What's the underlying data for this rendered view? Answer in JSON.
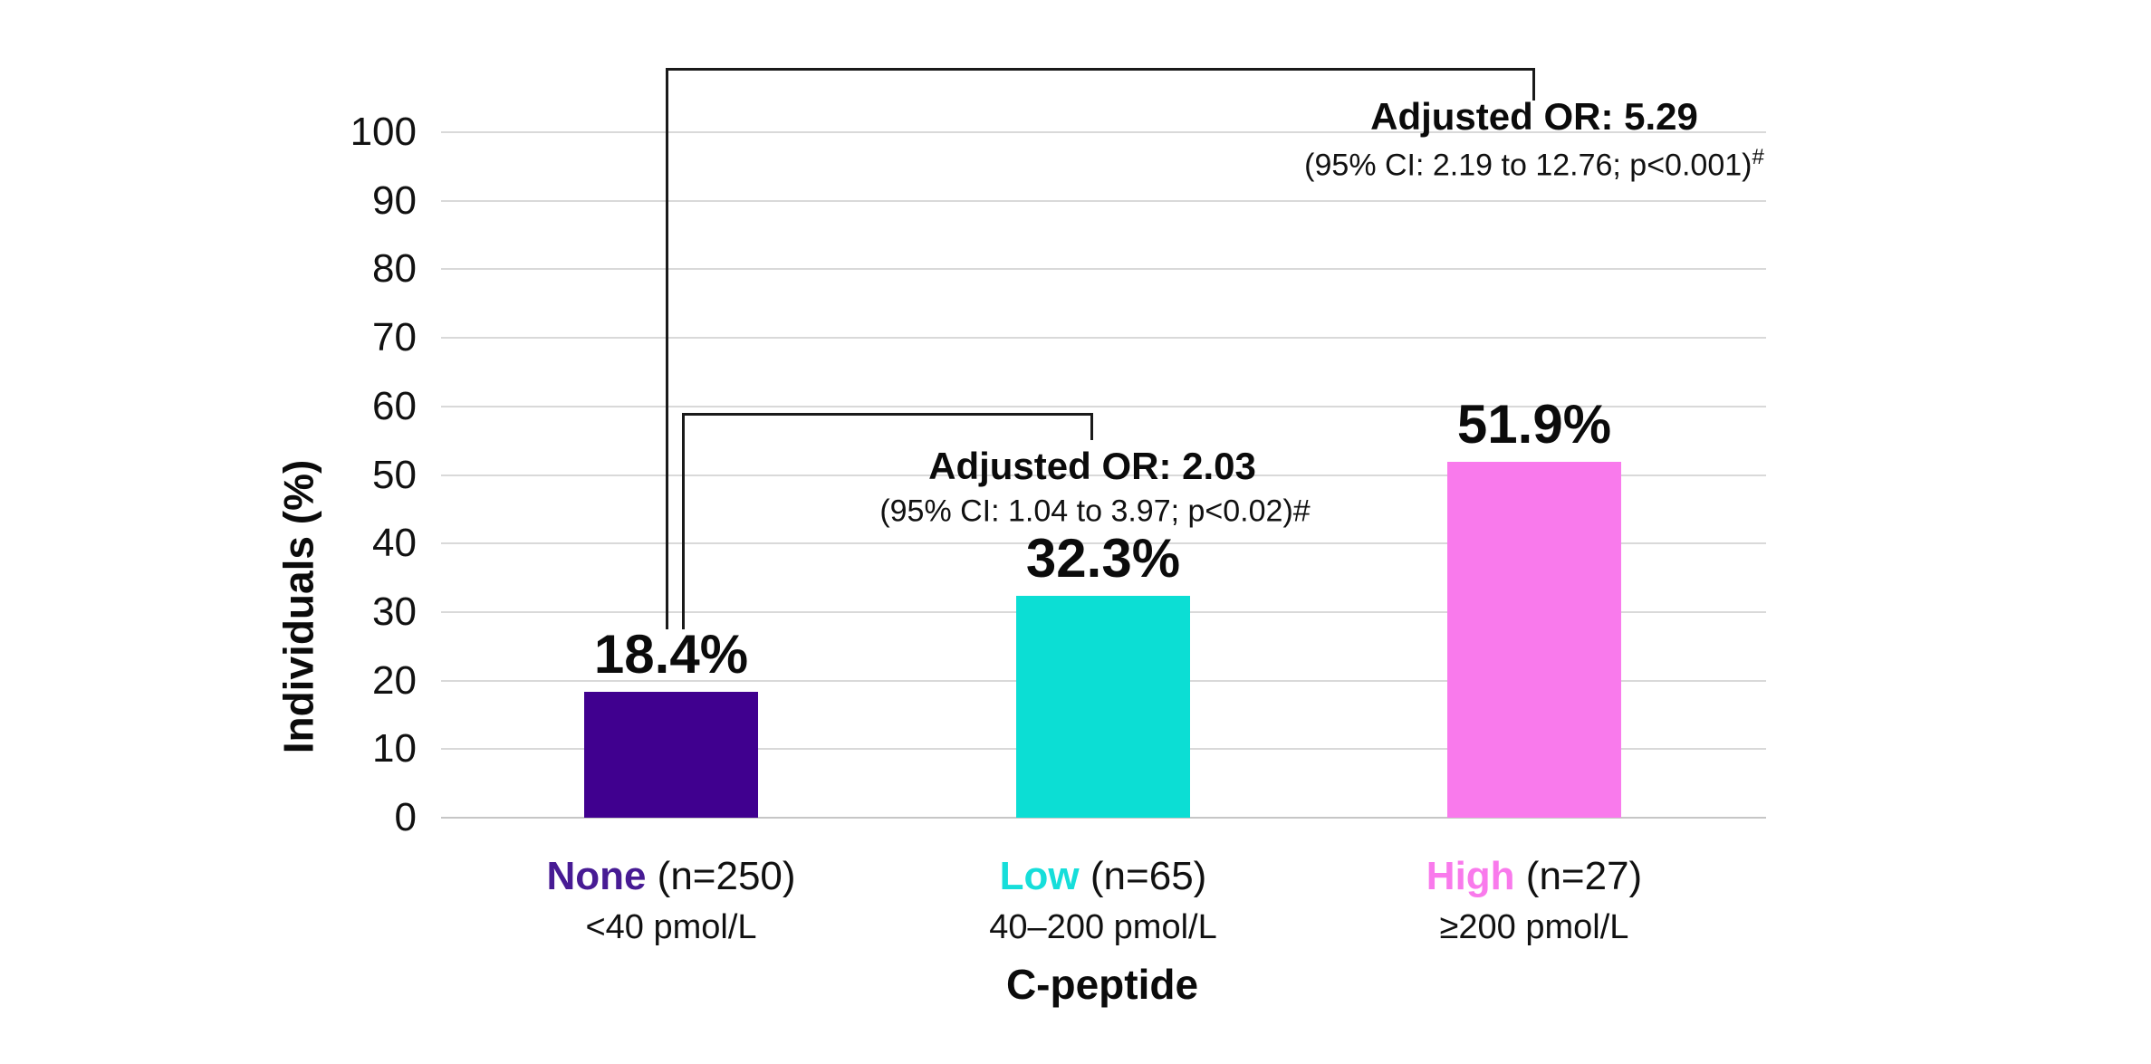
{
  "chart_data": {
    "type": "bar",
    "title": "",
    "xlabel": "C-peptide",
    "ylabel": "Individuals (%)",
    "ylim": [
      0,
      100
    ],
    "yticks": [
      0,
      10,
      20,
      30,
      40,
      50,
      60,
      70,
      80,
      90,
      100
    ],
    "grid": "horizontal",
    "legend": "none",
    "categories": [
      "None",
      "Low",
      "High"
    ],
    "values": [
      18.4,
      32.3,
      51.9
    ],
    "bars": [
      {
        "category": "None",
        "n_label": "(n=250)",
        "range_label": "<40 pmol/L",
        "value": 18.4,
        "value_label": "18.4%",
        "color": "#40008F",
        "label_color": "#471B94"
      },
      {
        "category": "Low",
        "n_label": "(n=65)",
        "range_label": "40–200 pmol/L",
        "value": 32.3,
        "value_label": "32.3%",
        "color": "#0CDED4",
        "label_color": "#16DEDA"
      },
      {
        "category": "High",
        "n_label": "(n=27)",
        "range_label": "≥200 pmol/L",
        "value": 51.9,
        "value_label": "51.9%",
        "color": "#F97AEC",
        "label_color": "#F97AEC"
      }
    ],
    "annotations": [
      {
        "title": "Adjusted OR: 5.29",
        "detail": "(95% CI: 2.19 to 12.76; p<0.001)",
        "superscript": "#"
      },
      {
        "title": "Adjusted OR: 2.03",
        "detail": "(95% CI: 1.04 to 3.97; p<0.02)#",
        "superscript": ""
      }
    ]
  }
}
